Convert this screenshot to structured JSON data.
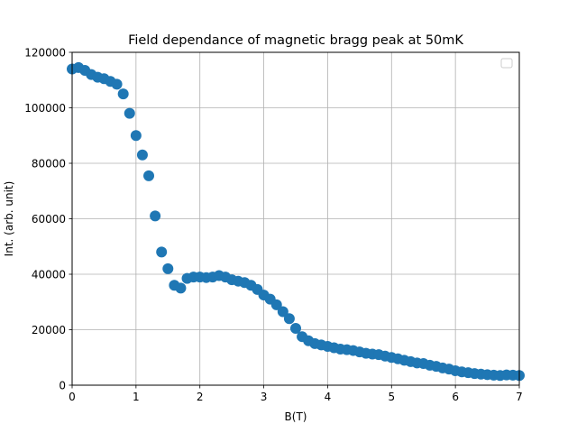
{
  "chart_data": {
    "type": "scatter",
    "title": "Field dependance of magnetic bragg peak at 50mK",
    "xlabel": "B(T)",
    "ylabel": "Int. (arb. unit)",
    "xlim": [
      0,
      7
    ],
    "ylim": [
      0,
      120000
    ],
    "xticks": [
      0,
      1,
      2,
      3,
      4,
      5,
      6,
      7
    ],
    "yticks": [
      0,
      20000,
      40000,
      60000,
      80000,
      100000,
      120000
    ],
    "grid": true,
    "legend": "top-right, empty",
    "marker_color": "#1f77b4",
    "series": [
      {
        "x": [
          0.0,
          0.1,
          0.2,
          0.3,
          0.4,
          0.5,
          0.6,
          0.7,
          0.8,
          0.9,
          1.0,
          1.1,
          1.2,
          1.3,
          1.4,
          1.5,
          1.6,
          1.7,
          1.8,
          1.9,
          2.0,
          2.1,
          2.2,
          2.3,
          2.4,
          2.5,
          2.6,
          2.7,
          2.8,
          2.9,
          3.0,
          3.1,
          3.2,
          3.3,
          3.4,
          3.5,
          3.6,
          3.7,
          3.8,
          3.9,
          4.0,
          4.1,
          4.2,
          4.3,
          4.4,
          4.5,
          4.6,
          4.7,
          4.8,
          4.9,
          5.0,
          5.1,
          5.2,
          5.3,
          5.4,
          5.5,
          5.6,
          5.7,
          5.8,
          5.9,
          6.0,
          6.1,
          6.2,
          6.3,
          6.4,
          6.5,
          6.6,
          6.7,
          6.8,
          6.9,
          7.0
        ],
        "y": [
          114000,
          114500,
          113500,
          112000,
          111000,
          110500,
          109500,
          108500,
          105000,
          98000,
          90000,
          83000,
          75500,
          61000,
          48000,
          42000,
          36000,
          35000,
          38500,
          39000,
          39000,
          38800,
          39000,
          39500,
          39000,
          38000,
          37500,
          37000,
          36000,
          34500,
          32500,
          31000,
          29000,
          26500,
          24000,
          20500,
          17500,
          16000,
          15000,
          14500,
          14000,
          13500,
          13000,
          12800,
          12500,
          12000,
          11500,
          11200,
          11000,
          10500,
          10000,
          9500,
          9000,
          8500,
          8000,
          7800,
          7200,
          6800,
          6200,
          5800,
          5200,
          4800,
          4500,
          4200,
          4000,
          3800,
          3600,
          3500,
          3700,
          3600,
          3500
        ]
      }
    ]
  }
}
